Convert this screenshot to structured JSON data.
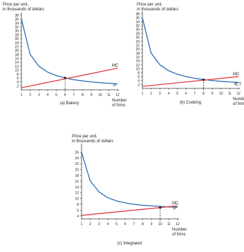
{
  "colors": {
    "ac_curve": "#2a6bb5",
    "mc_line": "#e03a3a",
    "axis": "#333333",
    "text": "#222222"
  },
  "chart_data": [
    {
      "type": "line",
      "caption": "(a) Bakery",
      "ylabel_lines": [
        "Price per unit,",
        "in thousands of dollars"
      ],
      "xlabel_lines": [
        "Number",
        "of firms"
      ],
      "x_ticks": [
        "1",
        "2",
        "3",
        "4",
        "5",
        "6",
        "7",
        "8",
        "9",
        "10",
        "11",
        "12"
      ],
      "y_ticks": [
        "2",
        "4",
        "6",
        "8",
        "10",
        "12",
        "14",
        "16",
        "18",
        "20",
        "22",
        "24",
        "26",
        "28",
        "30",
        "32",
        "34",
        "36",
        "38"
      ],
      "xlim": [
        1,
        12
      ],
      "ylim": [
        0,
        38
      ],
      "series": [
        {
          "name": "P",
          "kind": "ac",
          "x": [
            1,
            2,
            3,
            4,
            5,
            6,
            7,
            8,
            9,
            10,
            11,
            12
          ],
          "y": [
            36,
            18,
            12,
            9,
            7.2,
            6,
            5.1,
            4.5,
            4,
            3.6,
            3.3,
            3
          ]
        },
        {
          "name": "MC",
          "kind": "mc",
          "x": [
            1,
            12
          ],
          "y": [
            1,
            11
          ]
        }
      ],
      "marker": {
        "x": 6,
        "y": 6
      }
    },
    {
      "type": "line",
      "caption": "(b) Cooking",
      "ylabel_lines": [
        "Price per unit,",
        "in thousands of dollars"
      ],
      "xlabel_lines": [
        "Number",
        "of firms"
      ],
      "x_ticks": [
        "1",
        "2",
        "3",
        "4",
        "5",
        "6",
        "7",
        "8",
        "9",
        "10",
        "11",
        "12"
      ],
      "y_ticks": [
        "2",
        "4",
        "6",
        "8",
        "10",
        "12",
        "14",
        "16",
        "18",
        "20",
        "22",
        "24",
        "26",
        "28",
        "30",
        "32",
        "34",
        "36",
        "38"
      ],
      "xlim": [
        1,
        12
      ],
      "ylim": [
        0,
        38
      ],
      "series": [
        {
          "name": "P",
          "kind": "ac",
          "x": [
            1,
            2,
            3,
            4,
            5,
            6,
            7,
            8,
            9,
            10,
            11,
            12
          ],
          "y": [
            36,
            18,
            12,
            9,
            7.2,
            6,
            5.1,
            4.5,
            4,
            3.6,
            3.3,
            3
          ]
        },
        {
          "name": "MC",
          "kind": "mc",
          "x": [
            1,
            12
          ],
          "y": [
            1,
            6
          ]
        },
        {
          "name": "CT",
          "kind": "ac_label",
          "x": [],
          "y": []
        }
      ],
      "marker": {
        "x": 8,
        "y": 4.4
      }
    },
    {
      "type": "line",
      "caption": "(c) Integrated",
      "ylabel_lines": [
        "Price per unit,",
        "in thousands of dollars"
      ],
      "xlabel_lines": [
        "Number",
        "of firms"
      ],
      "x_ticks": [
        "1",
        "2",
        "3",
        "4",
        "5",
        "6",
        "7",
        "8",
        "9",
        "10",
        "11",
        "12"
      ],
      "y_ticks": [
        "4",
        "6",
        "8",
        "10",
        "12",
        "14",
        "16",
        "18",
        "20",
        "22",
        "24",
        "26"
      ],
      "xlim": [
        1,
        12
      ],
      "ylim": [
        3,
        28
      ],
      "series": [
        {
          "name": "P",
          "kind": "ac",
          "x": [
            1,
            2,
            3,
            4,
            5,
            6,
            7,
            8,
            9,
            10,
            11,
            12
          ],
          "y": [
            26,
            16,
            12.3,
            10.3,
            9.2,
            8.5,
            8,
            7.7,
            7.5,
            7.3,
            7.1,
            7
          ]
        },
        {
          "name": "MC",
          "kind": "mc",
          "x": [
            1,
            12
          ],
          "y": [
            4.2,
            7.5
          ]
        }
      ],
      "marker": {
        "x": 10,
        "y": 6.9
      }
    }
  ]
}
